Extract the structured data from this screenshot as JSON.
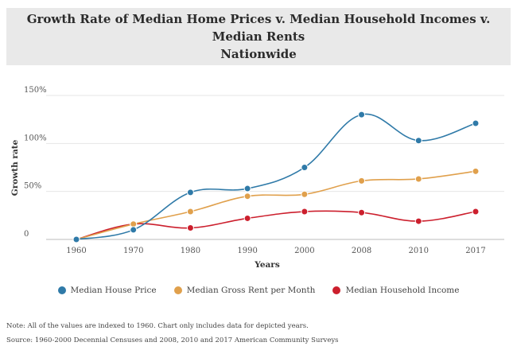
{
  "header": {
    "title_line1": "Growth Rate of Median Home Prices v. Median Household Incomes v. Median Rents",
    "title_line2": "Nationwide"
  },
  "chart_data": {
    "type": "line",
    "xlabel": "Years",
    "ylabel": "Growth rate",
    "categories": [
      "1960",
      "1970",
      "1980",
      "1990",
      "2000",
      "2008",
      "2010",
      "2017"
    ],
    "ylim": [
      0,
      150
    ],
    "yticks": [
      0,
      50,
      100,
      150
    ],
    "ytick_labels": [
      "0",
      "50%",
      "100%",
      "150%"
    ],
    "grid": true,
    "legend_position": "bottom",
    "series": [
      {
        "name": "Median House Price",
        "color": "#2f7aa8",
        "values": [
          0,
          10,
          49,
          53,
          75,
          130,
          103,
          121
        ]
      },
      {
        "name": "Median Gross Rent per Month",
        "color": "#e0a04c",
        "values": [
          0,
          16,
          29,
          45,
          47,
          61,
          63,
          71
        ]
      },
      {
        "name": "Median Household Income",
        "color": "#cc1f2d",
        "values": [
          0,
          16,
          12,
          22,
          29,
          28,
          19,
          29
        ]
      }
    ]
  },
  "notes": {
    "note": "Note: All of the values are indexed to 1960. Chart only includes data for depicted years.",
    "source": "Source: 1960-2000 Decennial Censuses and 2008, 2010 and 2017 American Community Surveys"
  }
}
